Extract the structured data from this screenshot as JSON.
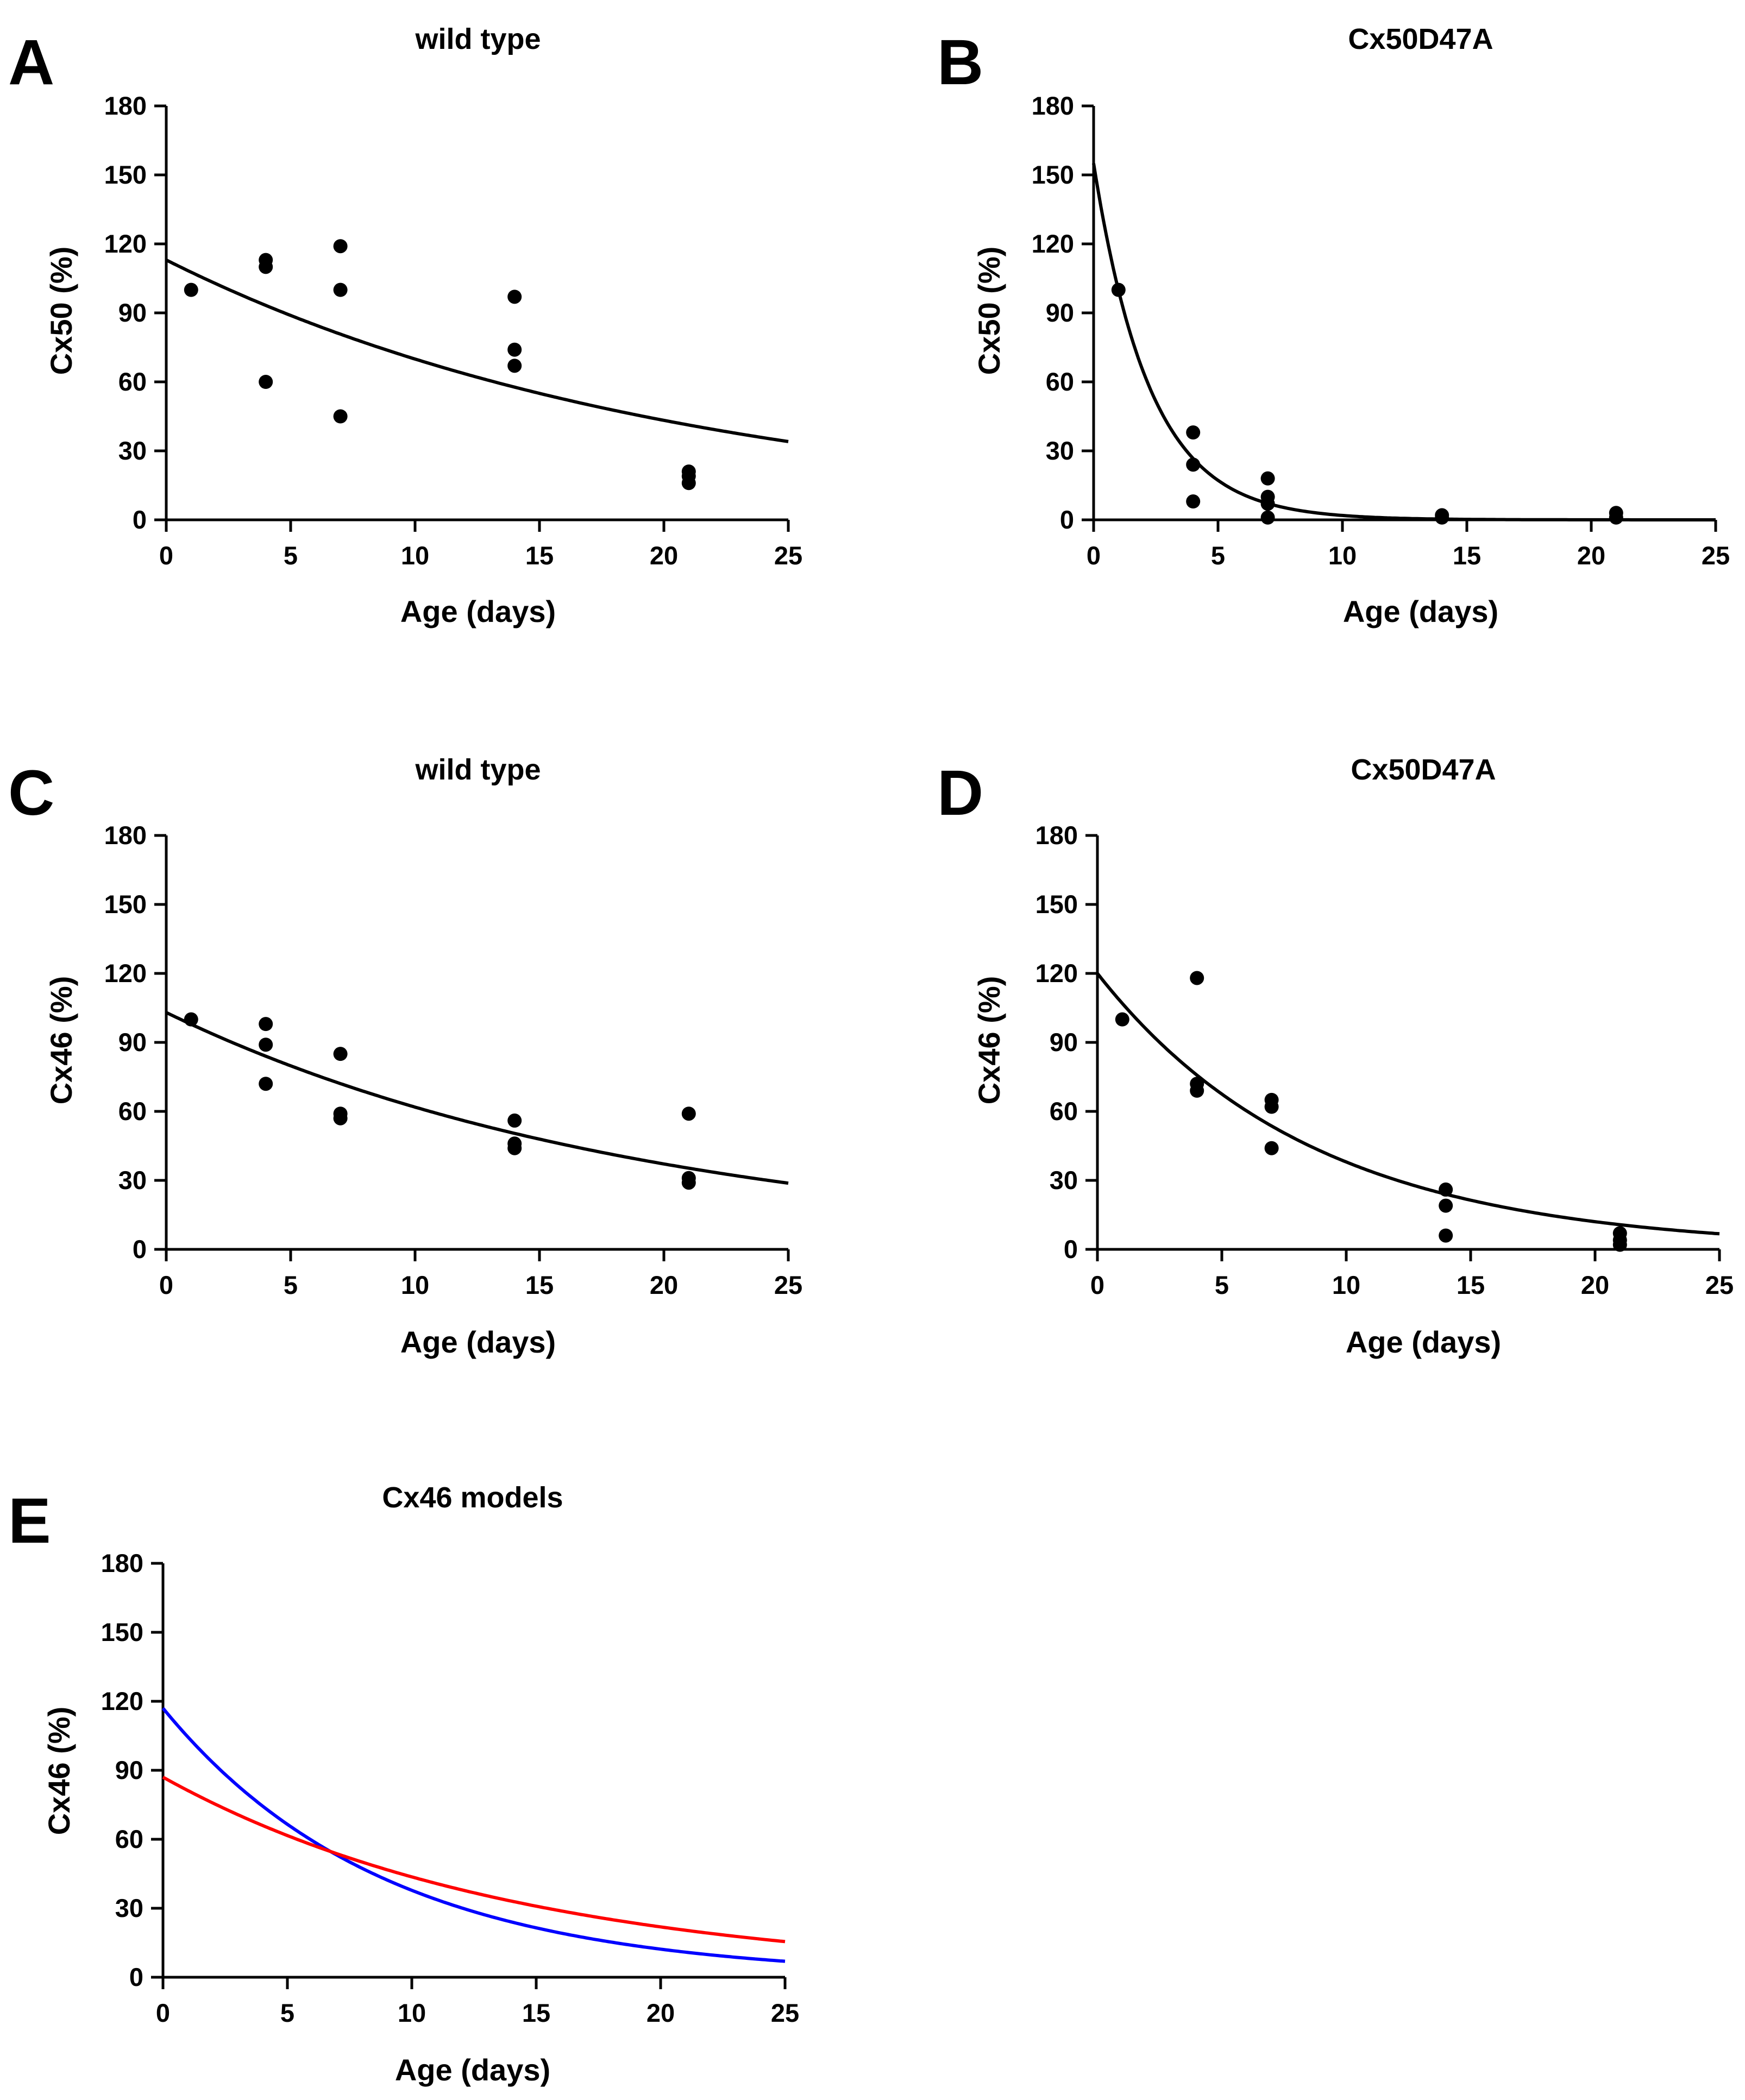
{
  "figure": {
    "panels": [
      "A",
      "B",
      "C",
      "D",
      "E"
    ]
  },
  "colors": {
    "axis": "#000000",
    "points": "#000000",
    "fit": "#000000",
    "model_blue": "#0000ff",
    "model_red": "#ff0000"
  },
  "chart_data": [
    {
      "panel": "A",
      "type": "scatter",
      "title": "wild type",
      "xlabel": "Age (days)",
      "ylabel": "Cx50 (%)",
      "xlim": [
        0,
        25
      ],
      "ylim": [
        0,
        180
      ],
      "xticks": [
        0,
        5,
        10,
        15,
        20,
        25
      ],
      "yticks": [
        0,
        30,
        60,
        90,
        120,
        150,
        180
      ],
      "points": [
        [
          1,
          100
        ],
        [
          4,
          113
        ],
        [
          4,
          110
        ],
        [
          4,
          60
        ],
        [
          7,
          119
        ],
        [
          7,
          100
        ],
        [
          7,
          45
        ],
        [
          14,
          97
        ],
        [
          14,
          74
        ],
        [
          14,
          67
        ],
        [
          21,
          21
        ],
        [
          21,
          19
        ],
        [
          21,
          16
        ]
      ],
      "fit": {
        "name": "exponential fit",
        "a": 113,
        "k": 0.048
      }
    },
    {
      "panel": "B",
      "type": "scatter",
      "title": "Cx50D47A",
      "xlabel": "Age (days)",
      "ylabel": "Cx50 (%)",
      "xlim": [
        0,
        25
      ],
      "ylim": [
        0,
        180
      ],
      "xticks": [
        0,
        5,
        10,
        15,
        20,
        25
      ],
      "yticks": [
        0,
        30,
        60,
        90,
        120,
        150,
        180
      ],
      "points": [
        [
          1,
          100
        ],
        [
          4,
          38
        ],
        [
          4,
          24
        ],
        [
          4,
          8
        ],
        [
          7,
          18
        ],
        [
          7,
          10
        ],
        [
          7,
          7
        ],
        [
          7,
          1
        ],
        [
          14,
          2
        ],
        [
          14,
          1
        ],
        [
          21,
          3
        ],
        [
          21,
          1
        ]
      ],
      "fit": {
        "name": "exponential fit",
        "a": 155,
        "k": 0.44
      }
    },
    {
      "panel": "C",
      "type": "scatter",
      "title": "wild type",
      "xlabel": "Age (days)",
      "ylabel": "Cx46 (%)",
      "xlim": [
        0,
        25
      ],
      "ylim": [
        0,
        180
      ],
      "xticks": [
        0,
        5,
        10,
        15,
        20,
        25
      ],
      "yticks": [
        0,
        30,
        60,
        90,
        120,
        150,
        180
      ],
      "points": [
        [
          1,
          100
        ],
        [
          4,
          98
        ],
        [
          4,
          89
        ],
        [
          4,
          72
        ],
        [
          7,
          85
        ],
        [
          7,
          59
        ],
        [
          7,
          57
        ],
        [
          14,
          56
        ],
        [
          14,
          46
        ],
        [
          14,
          44
        ],
        [
          21,
          59
        ],
        [
          21,
          31
        ],
        [
          21,
          29
        ]
      ],
      "fit": {
        "name": "exponential fit",
        "a": 103,
        "k": 0.051
      }
    },
    {
      "panel": "D",
      "type": "scatter",
      "title": "Cx50D47A",
      "xlabel": "Age (days)",
      "ylabel": "Cx46 (%)",
      "xlim": [
        0,
        25
      ],
      "ylim": [
        0,
        180
      ],
      "xticks": [
        0,
        5,
        10,
        15,
        20,
        25
      ],
      "yticks": [
        0,
        30,
        60,
        90,
        120,
        150,
        180
      ],
      "points": [
        [
          1,
          100
        ],
        [
          4,
          118
        ],
        [
          4,
          72
        ],
        [
          4,
          69
        ],
        [
          7,
          65
        ],
        [
          7,
          62
        ],
        [
          7,
          44
        ],
        [
          14,
          26
        ],
        [
          14,
          19
        ],
        [
          14,
          6
        ],
        [
          21,
          7
        ],
        [
          21,
          4
        ],
        [
          21,
          2
        ]
      ],
      "fit": {
        "name": "exponential fit",
        "a": 120,
        "k": 0.115
      }
    },
    {
      "panel": "E",
      "type": "line",
      "title": "Cx46 models",
      "xlabel": "Age (days)",
      "ylabel": "Cx46 (%)",
      "xlim": [
        0,
        25
      ],
      "ylim": [
        0,
        180
      ],
      "xticks": [
        0,
        5,
        10,
        15,
        20,
        25
      ],
      "yticks": [
        0,
        30,
        60,
        90,
        120,
        150,
        180
      ],
      "points": [],
      "series": [
        {
          "name": "blue model",
          "color": "#0000ff",
          "a": 117,
          "k": 0.113
        },
        {
          "name": "red model",
          "color": "#ff0000",
          "a": 87,
          "k": 0.069
        }
      ]
    }
  ]
}
